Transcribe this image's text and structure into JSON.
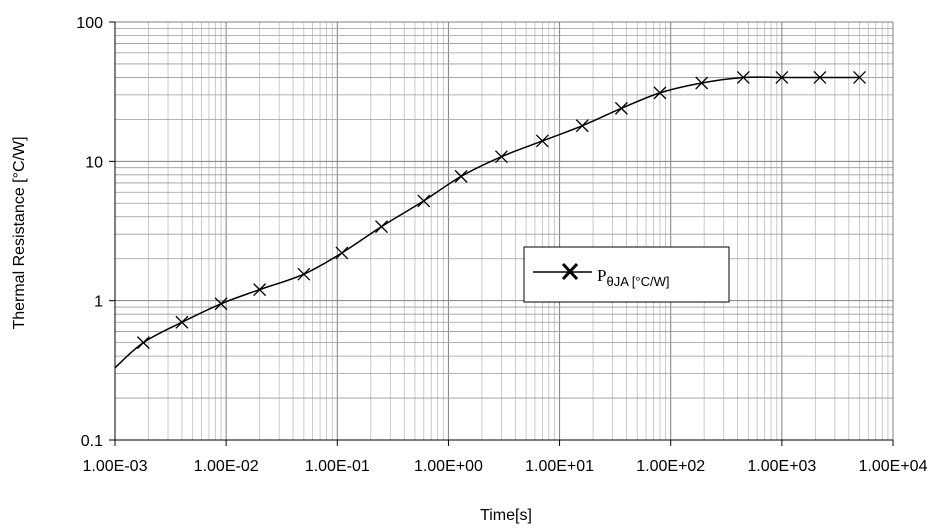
{
  "chart_data": {
    "type": "line",
    "xlabel": "Time[s]",
    "ylabel": "Thermal Resistance [°C/W]",
    "x_scale": "log",
    "y_scale": "log",
    "xlim": [
      0.001,
      10000
    ],
    "ylim": [
      0.1,
      100
    ],
    "x_tick_labels": [
      "1.00E-03",
      "1.00E-02",
      "1.00E-01",
      "1.00E+00",
      "1.00E+01",
      "1.00E+02",
      "1.00E+03",
      "1.00E+04"
    ],
    "y_tick_labels": [
      "0.1",
      "1",
      "10",
      "100"
    ],
    "grid": true,
    "legend_position": "center-right",
    "series": [
      {
        "name_main": "P",
        "name_sub": "θJA [°C/W]",
        "color": "#000000",
        "marker": "x",
        "curve": {
          "x": [
            0.001,
            0.0018,
            0.004,
            0.009,
            0.02,
            0.05,
            0.11,
            0.25,
            0.6,
            1.3,
            3,
            7,
            16,
            36,
            80,
            190,
            450,
            1000,
            2200,
            5000
          ],
          "y": [
            0.33,
            0.5,
            0.7,
            0.95,
            1.2,
            1.55,
            2.2,
            3.4,
            5.2,
            7.8,
            10.8,
            14,
            18,
            24,
            31,
            36.5,
            40,
            40,
            40,
            40
          ]
        },
        "points": {
          "x": [
            0.0018,
            0.004,
            0.009,
            0.02,
            0.05,
            0.11,
            0.25,
            0.6,
            1.3,
            3,
            7,
            16,
            36,
            80,
            190,
            450,
            1000,
            2200,
            5000
          ],
          "y": [
            0.5,
            0.7,
            0.95,
            1.2,
            1.55,
            2.2,
            3.4,
            5.2,
            7.8,
            10.8,
            14,
            18,
            24,
            31,
            36.5,
            40,
            40,
            40,
            40
          ]
        }
      }
    ]
  }
}
